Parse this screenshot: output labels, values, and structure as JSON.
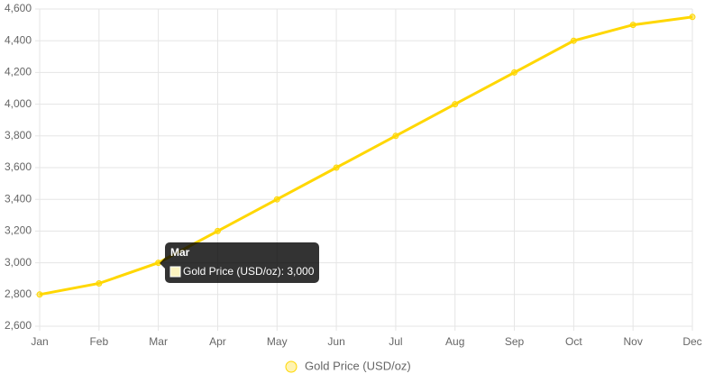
{
  "chart_data": {
    "type": "line",
    "categories": [
      "Jan",
      "Feb",
      "Mar",
      "Apr",
      "May",
      "Jun",
      "Jul",
      "Aug",
      "Sep",
      "Oct",
      "Nov",
      "Dec"
    ],
    "series": [
      {
        "name": "Gold Price (USD/oz)",
        "color": "#FFD700",
        "values": [
          2800,
          2870,
          3000,
          3200,
          3400,
          3600,
          3800,
          4000,
          4200,
          4400,
          4500,
          4550
        ]
      }
    ],
    "ylim": [
      2600,
      4600
    ],
    "yticks": [
      {
        "value": 2600,
        "label": "2,600"
      },
      {
        "value": 2800,
        "label": "2,800"
      },
      {
        "value": 3000,
        "label": "3,000"
      },
      {
        "value": 3200,
        "label": "3,200"
      },
      {
        "value": 3400,
        "label": "3,400"
      },
      {
        "value": 3600,
        "label": "3,600"
      },
      {
        "value": 3800,
        "label": "3,800"
      },
      {
        "value": 4000,
        "label": "4,000"
      },
      {
        "value": 4200,
        "label": "4,200"
      },
      {
        "value": 4400,
        "label": "4,400"
      },
      {
        "value": 4600,
        "label": "4,600"
      }
    ],
    "grid": true,
    "legend": "bottom",
    "tooltip": {
      "title": "Mar",
      "text": "Gold Price (USD/oz): 3,000"
    }
  }
}
